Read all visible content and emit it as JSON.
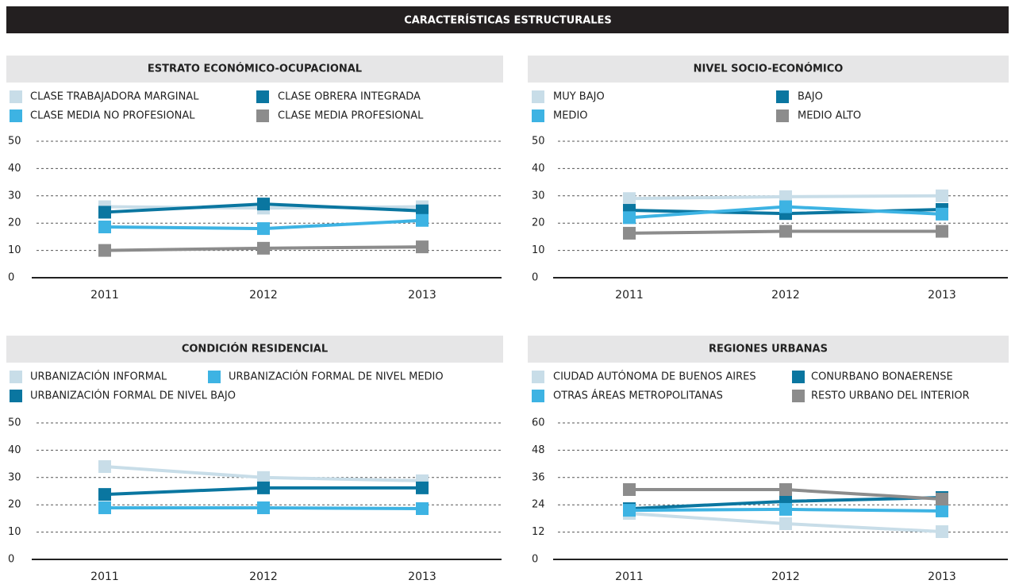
{
  "title": "CARACTERÍSTICAS ESTRUCTURALES",
  "chart_data": [
    {
      "type": "line",
      "title": "ESTRATO ECONÓMICO-OCUPACIONAL",
      "categories": [
        "2011",
        "2012",
        "2013"
      ],
      "ylim": [
        0,
        50
      ],
      "yticks": [
        0,
        10,
        20,
        30,
        40,
        50
      ],
      "grid": true,
      "series": [
        {
          "name": "CLASE TRABAJADORA MARGINAL",
          "color": "#c8dde8",
          "values": [
            26,
            25.5,
            26
          ]
        },
        {
          "name": "CLASE OBRERA INTEGRADA",
          "color": "#0a76a0",
          "values": [
            24,
            27,
            24.5
          ]
        },
        {
          "name": "CLASE MEDIA NO PROFESIONAL",
          "color": "#3db3e3",
          "values": [
            18.6,
            18,
            21
          ]
        },
        {
          "name": "CLASE MEDIA PROFESIONAL",
          "color": "#8c8c8c",
          "values": [
            10,
            10.8,
            11.3
          ]
        }
      ]
    },
    {
      "type": "line",
      "title": "NIVEL SOCIO-ECONÓMICO",
      "categories": [
        "2011",
        "2012",
        "2013"
      ],
      "ylim": [
        0,
        50
      ],
      "yticks": [
        0,
        10,
        20,
        30,
        40,
        50
      ],
      "grid": true,
      "series": [
        {
          "name": "MUY BAJO",
          "color": "#c8dde8",
          "values": [
            29,
            29.7,
            30
          ]
        },
        {
          "name": "BAJO",
          "color": "#0a76a0",
          "values": [
            24.7,
            23.5,
            25
          ]
        },
        {
          "name": "MEDIO",
          "color": "#3db3e3",
          "values": [
            22,
            26,
            23.3
          ]
        },
        {
          "name": "MEDIO ALTO",
          "color": "#8c8c8c",
          "values": [
            16.3,
            17,
            17
          ]
        }
      ]
    },
    {
      "type": "line",
      "title": "CONDICIÓN RESIDENCIAL",
      "categories": [
        "2011",
        "2012",
        "2013"
      ],
      "ylim": [
        0,
        50
      ],
      "yticks": [
        0,
        10,
        20,
        30,
        40,
        50
      ],
      "grid": true,
      "series": [
        {
          "name": "URBANIZACIÓN INFORMAL",
          "color": "#c8dde8",
          "values": [
            34,
            30,
            28.8
          ]
        },
        {
          "name": "URBANIZACIÓN FORMAL DE NIVEL MEDIO",
          "color": "#3db3e3",
          "values": [
            18.9,
            18.9,
            18.6
          ]
        },
        {
          "name": "URBANIZACIÓN FORMAL DE NIVEL BAJO",
          "color": "#0a76a0",
          "values": [
            23.8,
            26.2,
            26.2
          ]
        }
      ]
    },
    {
      "type": "line",
      "title": "REGIONES URBANAS",
      "categories": [
        "2011",
        "2012",
        "2013"
      ],
      "ylim": [
        0,
        60
      ],
      "yticks": [
        0,
        12,
        24,
        36,
        48,
        60
      ],
      "grid": true,
      "series": [
        {
          "name": "CIUDAD AUTÓNOMA DE BUENOS AIRES",
          "color": "#c8dde8",
          "values": [
            20.2,
            15.7,
            12.2
          ]
        },
        {
          "name": "CONURBANO BONAERENSE",
          "color": "#0a76a0",
          "values": [
            22.3,
            25.5,
            27.2
          ]
        },
        {
          "name": "OTRAS ÁREAS METROPOLITANAS",
          "color": "#3db3e3",
          "values": [
            21.6,
            22,
            21.3
          ]
        },
        {
          "name": "RESTO URBANO DEL INTERIOR",
          "color": "#8c8c8c",
          "values": [
            30.7,
            30.7,
            26.5
          ]
        }
      ]
    }
  ]
}
